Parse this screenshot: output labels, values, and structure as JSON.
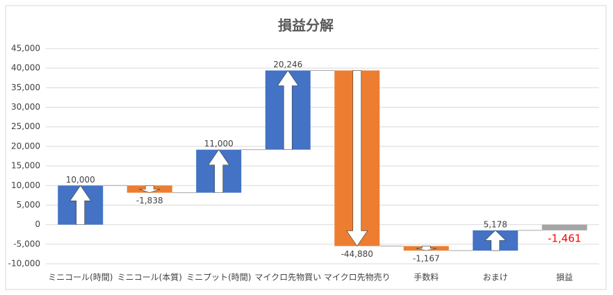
{
  "chart_data": {
    "type": "waterfall",
    "title": "損益分解",
    "categories": [
      "ミニコール(時間)",
      "ミニコール(本質)",
      "ミニプット(時間)",
      "マイクロ先物買い",
      "マイクロ先物売り",
      "手数料",
      "おまけ",
      "損益"
    ],
    "values": [
      10000,
      -1838,
      11000,
      20246,
      -44880,
      -1167,
      5178,
      -1461
    ],
    "value_labels": [
      "10,000",
      "-1,838",
      "11,000",
      "20,246",
      "-44,880",
      "-1,167",
      "5,178",
      "-1,461"
    ],
    "total_index": 7,
    "increase_color": "#4472c4",
    "decrease_color": "#ed7d31",
    "total_color": "#a5a5a5",
    "total_label_color": "#ff0000",
    "ylim": [
      -10000,
      45000
    ],
    "yticks": [
      {
        "value": -10000,
        "label": "-10,000"
      },
      {
        "value": -5000,
        "label": "-5,000"
      },
      0,
      {
        "value": 5000,
        "label": "5,000"
      },
      {
        "value": 10000,
        "label": "10,000"
      },
      {
        "value": 15000,
        "label": "15,000"
      },
      {
        "value": 20000,
        "label": "20,000"
      },
      {
        "value": 25000,
        "label": "25,000"
      },
      {
        "value": 30000,
        "label": "30,000"
      },
      {
        "value": 35000,
        "label": "35,000"
      },
      {
        "value": 40000,
        "label": "40,000"
      },
      {
        "value": 45000,
        "label": "45,000"
      }
    ],
    "grid": true
  }
}
